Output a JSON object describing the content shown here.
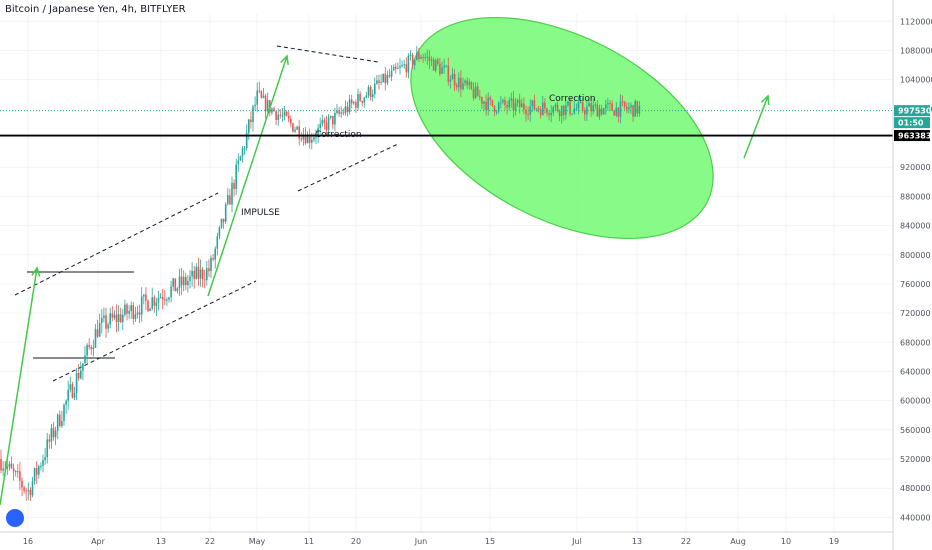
{
  "header": {
    "title": "Bitcoin / Japanese Yen, 4h, BITFLYER"
  },
  "colors": {
    "up": "#26a69a",
    "down": "#ef5350",
    "ellipse_fill": "#7dfa7d",
    "ellipse_stroke": "#3cc93c",
    "arrow": "#43c94b",
    "support_line": "#000000",
    "current_price": "#26a69a"
  },
  "chart_data": {
    "type": "candlestick",
    "title": "Bitcoin / Japanese Yen, 4h, BITFLYER",
    "ylim": [
      420000,
      1130000
    ],
    "y_ticks": [
      "1120000",
      "1080000",
      "1040000",
      "1000000",
      "960000",
      "920000",
      "880000",
      "840000",
      "800000",
      "760000",
      "720000",
      "680000",
      "640000",
      "600000",
      "560000",
      "520000",
      "480000",
      "440000"
    ],
    "x_ticks": [
      "16",
      "Apr",
      "13",
      "22",
      "May",
      "11",
      "20",
      "Jun",
      "15",
      "Jul",
      "13",
      "22",
      "Aug",
      "10",
      "19"
    ],
    "price_path": [
      [
        "16",
        475000
      ],
      [
        "Apr",
        700000
      ],
      [
        "13",
        745000
      ],
      [
        "22",
        780000
      ],
      [
        "May",
        1015000
      ],
      [
        "11",
        960000
      ],
      [
        "20",
        1010000
      ],
      [
        "Jun",
        1075000
      ],
      [
        "15",
        1005000
      ],
      [
        "Jul",
        1000000
      ],
      [
        "13",
        1000000
      ]
    ],
    "annotations": {
      "impulse": "IMPULSE",
      "correction_1": "Correction",
      "correction_2": "Correction"
    },
    "levels": {
      "support": 963383,
      "current": 997530,
      "support_label": "963383",
      "current_label": "997530",
      "countdown_label": "01:50"
    },
    "grid": true
  }
}
